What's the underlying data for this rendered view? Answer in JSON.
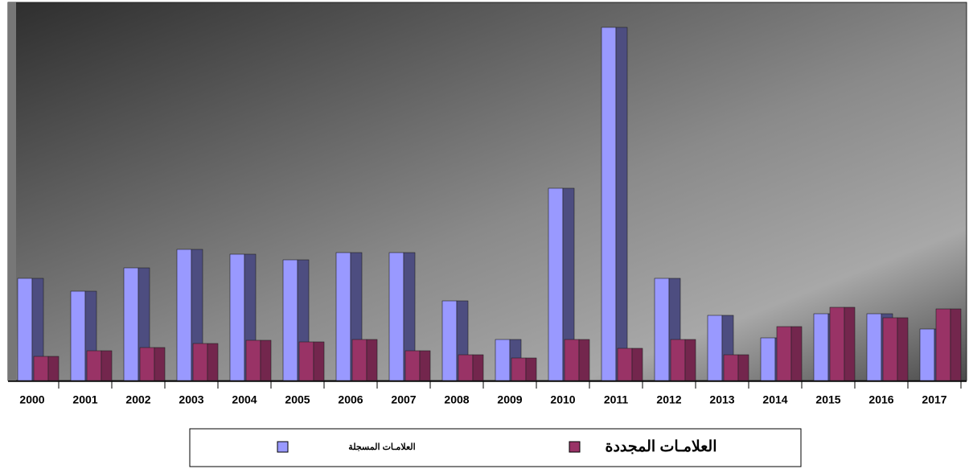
{
  "chart_data": {
    "type": "bar",
    "categories": [
      "2000",
      "2001",
      "2002",
      "2003",
      "2004",
      "2005",
      "2006",
      "2007",
      "2008",
      "2009",
      "2010",
      "2011",
      "2012",
      "2013",
      "2014",
      "2015",
      "2016",
      "2017"
    ],
    "series": [
      {
        "name": "العلامـات المسجلة",
        "color": "#9999ff",
        "values": [
          127,
          111,
          140,
          163,
          157,
          150,
          159,
          159,
          99,
          51,
          239,
          439,
          127,
          81,
          53,
          83,
          83,
          64
        ]
      },
      {
        "name": "العلامـات المجددة",
        "color": "#993366",
        "values": [
          30,
          37,
          41,
          46,
          50,
          48,
          51,
          37,
          32,
          28,
          51,
          40,
          51,
          32,
          67,
          91,
          78,
          89
        ]
      }
    ],
    "ylim": [
      0,
      470
    ]
  }
}
